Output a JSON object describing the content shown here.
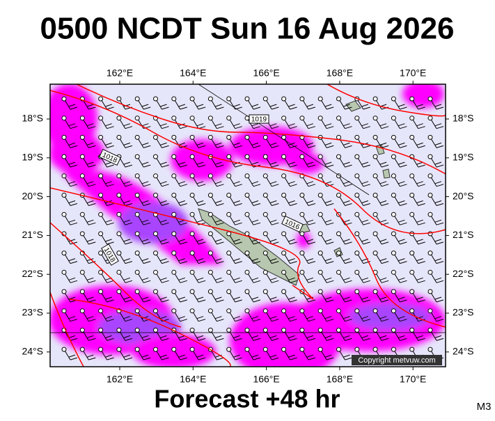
{
  "header": {
    "title": "0500 NCDT Sun 16 Aug 2026"
  },
  "map": {
    "lon_labels_top": [
      "162°E",
      "164°E",
      "166°E",
      "168°E",
      "170°E"
    ],
    "lon_labels_bottom": [
      "162°E",
      "164°E",
      "166°E",
      "168°E",
      "170°E"
    ],
    "lat_labels_left": [
      "18°S",
      "19°S",
      "20°S",
      "21°S",
      "22°S",
      "23°S",
      "24°S"
    ],
    "lat_labels_right": [
      "18°S",
      "19°S",
      "20°S",
      "21°S",
      "22°S",
      "23°S",
      "24°S"
    ],
    "isobar_labels": [
      "1019",
      "1018",
      "1016",
      "1018"
    ],
    "copyright": "Copyright metvuw.com"
  },
  "footer": {
    "forecast": "Forecast +48 hr",
    "model": "M3"
  }
}
